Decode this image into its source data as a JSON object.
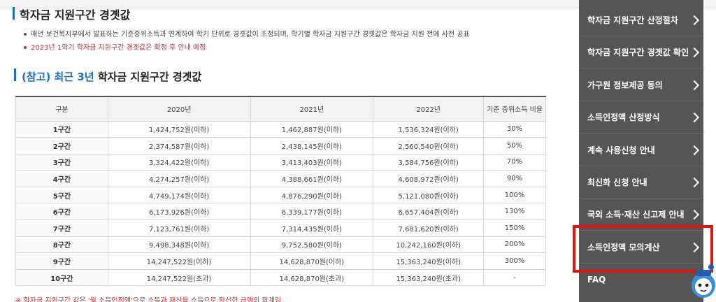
{
  "heading_cut": "학자금 지원구간 경곗값",
  "notes": [
    "매년 보건복지부에서 발표하는 기준중위소득과 연계하여 학기 단위로 경곗값이 조정되며, 학기별 학자금 지원구간 경곗값은 학자금 지원 전에 사전 공표",
    "2023년 1학기 학자금 지원구간 경곗값은 확정 후 안내 예정"
  ],
  "section": {
    "prefix": "(참고) 최근 3년",
    "title": " 학자금 지원구간 경곗값"
  },
  "table": {
    "headers": [
      "구분",
      "2020년",
      "2021년",
      "2022년",
      "기준 중위소득 비율"
    ],
    "rows": [
      [
        "1구간",
        "1,424,752원(이하)",
        "1,462,887원(이하)",
        "1,536,324원(이하)",
        "30%"
      ],
      [
        "2구간",
        "2,374,587원(이하)",
        "2,438,145원(이하)",
        "2,560,540원(이하)",
        "50%"
      ],
      [
        "3구간",
        "3,324,422원(이하)",
        "3,413,403원(이하)",
        "3,584,756원(이하)",
        "70%"
      ],
      [
        "4구간",
        "4,274,257원(이하)",
        "4,388,661원(이하)",
        "4,608,972원(이하)",
        "90%"
      ],
      [
        "5구간",
        "4,749,174원(이하)",
        "4,876,290원(이하)",
        "5,121,080원(이하)",
        "100%"
      ],
      [
        "6구간",
        "6,173,926원(이하)",
        "6,339,177원(이하)",
        "6,657,404원(이하)",
        "130%"
      ],
      [
        "7구간",
        "7,123,761원(이하)",
        "7,314,435원(이하)",
        "7,681,620원(이하)",
        "150%"
      ],
      [
        "8구간",
        "9,498,348원(이하)",
        "9,752,580원(이하)",
        "10,242,160원(이하)",
        "200%"
      ],
      [
        "9구간",
        "14,247,522원(이하)",
        "14,628,870원(이하)",
        "15,363,240원(이하)",
        "300%"
      ],
      [
        "10구간",
        "14,247,522원(초과)",
        "14,628,870원(초과)",
        "15,363,240원(초과)",
        "-"
      ]
    ]
  },
  "foot_note": "※ 학자금 지원구간 값은 '월 소득인정액'으로 소득과 재산을 소득으로 환산한 금액의 합계임",
  "sidebar": {
    "items": [
      "학자금 지원구간 산정절차",
      "학자금 지원구간 경곗값 확인",
      "가구원 정보제공 동의",
      "소득인정액 산정방식",
      "계속 사용신청 안내",
      "최신화 신청 안내",
      "국외 소득·재산 신고제 안내",
      "소득인정액 모의계산",
      "FAQ"
    ]
  },
  "colors": {
    "accent_blue": "#1c6fc0",
    "sidebar_bg": "#555555",
    "highlight_red": "#e01414",
    "note_red": "#d62b2b"
  }
}
